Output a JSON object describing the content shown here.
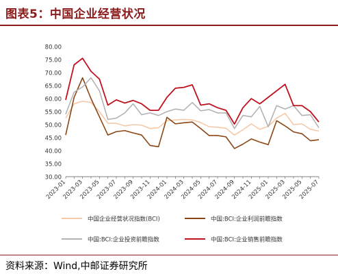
{
  "title": "图表5：中国企业经营状况",
  "source": "资料来源：Wind,中邮证券研究所",
  "chart_data": {
    "type": "line",
    "x": [
      "2023-01",
      "2023-02",
      "2023-03",
      "2023-04",
      "2023-05",
      "2023-06",
      "2023-07",
      "2023-08",
      "2023-09",
      "2023-10",
      "2023-11",
      "2023-12",
      "2024-01",
      "2024-02",
      "2024-03",
      "2024-04",
      "2024-05",
      "2024-06",
      "2024-07",
      "2024-08",
      "2024-09",
      "2024-10",
      "2024-11",
      "2024-12",
      "2025-01",
      "2025-02",
      "2025-03",
      "2025-04",
      "2025-05",
      "2025-06",
      "2025-07"
    ],
    "x_tick_labels": [
      "2023-01",
      "2023-03",
      "2023-05",
      "2023-07",
      "2023-09",
      "2023-11",
      "2024-01",
      "2024-03",
      "2024-05",
      "2024-07",
      "2024-09",
      "2024-11",
      "2025-01",
      "2025-03",
      "2025-05",
      "2025-07"
    ],
    "y_tick_labels": [
      "30.00",
      "35.00",
      "40.00",
      "45.00",
      "50.00",
      "55.00",
      "60.00",
      "65.00",
      "70.00",
      "75.00",
      "80.00"
    ],
    "ylim": [
      30,
      80
    ],
    "y_step": 5,
    "grid": false,
    "legend_position": "bottom",
    "series": [
      {
        "name": "中国企业经营状况指数(BCI)",
        "color": "#f5c9a8",
        "values": [
          52.5,
          58.0,
          59.0,
          58.5,
          55.0,
          50.5,
          50.5,
          49.5,
          50.0,
          49.8,
          48.5,
          48.8,
          51.5,
          51.8,
          52.0,
          51.8,
          50.8,
          49.2,
          49.0,
          48.6,
          46.0,
          48.0,
          50.3,
          48.2,
          49.3,
          52.5,
          54.3,
          50.0,
          50.3,
          48.2,
          47.5
        ]
      },
      {
        "name": "中国:BCI:企业利润前瞻指数",
        "color": "#8b4513",
        "values": [
          46.0,
          60.5,
          68.0,
          60.0,
          53.0,
          46.0,
          47.3,
          47.7,
          46.8,
          46.0,
          42.0,
          41.5,
          52.8,
          50.3,
          50.7,
          51.0,
          48.5,
          45.8,
          45.8,
          45.3,
          40.8,
          42.5,
          44.5,
          43.3,
          42.3,
          51.5,
          49.5,
          47.2,
          46.5,
          43.8,
          44.2
        ]
      },
      {
        "name": "中国:BCI:企业投资前瞻指数",
        "color": "#b3b3b3",
        "values": [
          54.0,
          62.5,
          64.5,
          68.0,
          63.0,
          52.0,
          52.5,
          54.5,
          58.0,
          53.8,
          54.5,
          53.5,
          55.0,
          56.0,
          55.5,
          58.5,
          55.3,
          55.8,
          54.5,
          54.5,
          48.5,
          53.5,
          53.0,
          57.0,
          49.2,
          57.3,
          56.0,
          57.3,
          53.5,
          53.8,
          48.8
        ]
      },
      {
        "name": "中国:BCI:企业销售前瞻指数",
        "color": "#c0101e",
        "values": [
          59.5,
          73.0,
          75.5,
          70.5,
          67.5,
          57.5,
          59.5,
          58.3,
          59.3,
          58.0,
          55.5,
          55.5,
          60.5,
          64.0,
          64.3,
          65.3,
          57.5,
          58.0,
          56.5,
          55.5,
          50.2,
          56.5,
          60.0,
          58.0,
          60.5,
          63.0,
          65.5,
          57.3,
          57.3,
          55.0,
          51.0
        ]
      }
    ]
  }
}
